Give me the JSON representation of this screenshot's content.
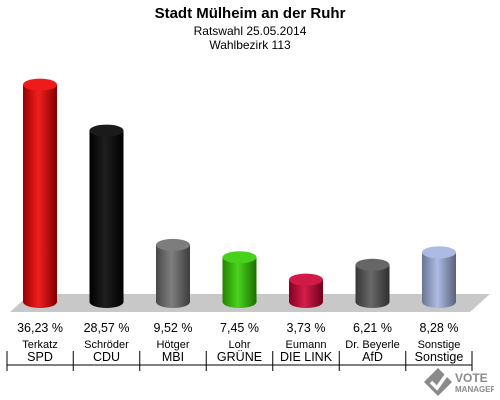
{
  "chart_data": {
    "type": "bar",
    "title": "Stadt Mülheim an der Ruhr",
    "subtitle": "Ratswahl 25.05.2014",
    "subtitle2": "Wahlbezirk 113",
    "categories": [
      "SPD",
      "CDU",
      "MBI",
      "GRÜNE",
      "DIE LINKE",
      "AfD",
      "Sonstige"
    ],
    "display_categories": [
      "SPD",
      "CDU",
      "MBI",
      "GRÜNE",
      "DIE LINK",
      "AfD",
      "Sonstige"
    ],
    "candidates": [
      "Terkatz",
      "Schröder",
      "Hötger",
      "Lohr",
      "Eumann",
      "Dr. Beyerle",
      "Sonstige"
    ],
    "values": [
      36.23,
      28.57,
      9.52,
      7.45,
      3.73,
      6.21,
      8.28
    ],
    "value_labels": [
      "36,23 %",
      "28,57 %",
      "9,52 %",
      "7,45 %",
      "3,73 %",
      "6,21 %",
      "8,28 %"
    ],
    "colors": [
      "#ee0000",
      "#000000",
      "#6e6e6e",
      "#33cc00",
      "#cc0033",
      "#555555",
      "#a3b3e0"
    ],
    "ylim": [
      0,
      40
    ],
    "grid": false,
    "legend": "none"
  },
  "logo": {
    "line1": "VOTE",
    "line2": "MANAGER"
  }
}
